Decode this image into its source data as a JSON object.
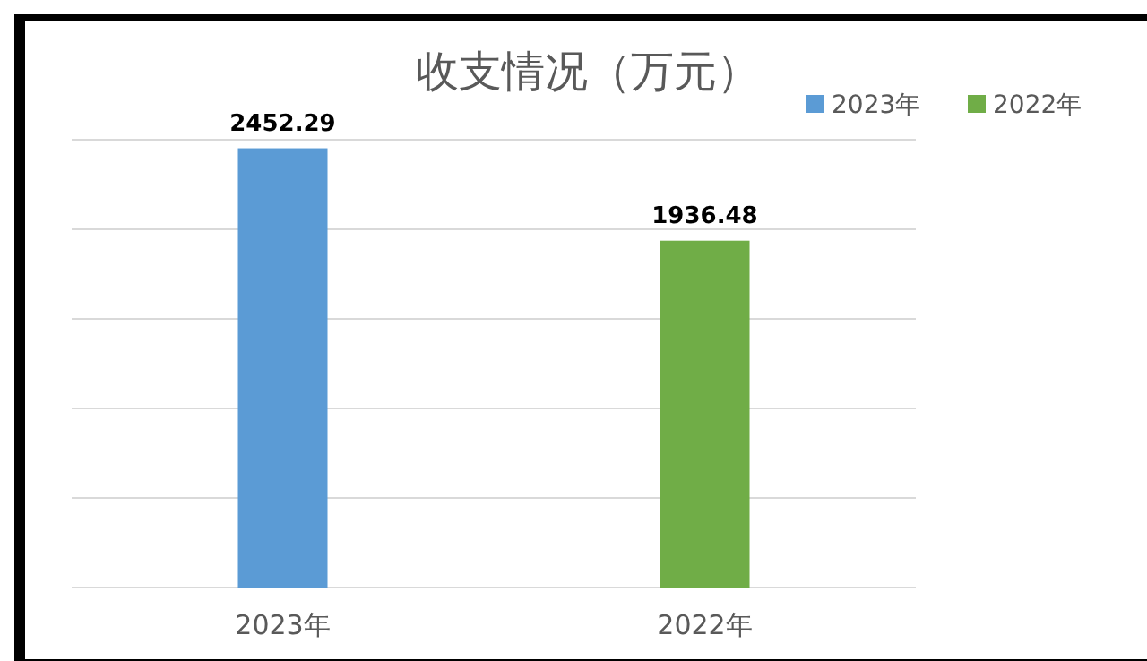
{
  "chart_data": {
    "type": "bar",
    "title": "收支情况（万元）",
    "categories": [
      "2023年",
      "2022年"
    ],
    "series": [
      {
        "name": "2023年",
        "color": "#5b9bd5",
        "values": [
          2452.29,
          null
        ]
      },
      {
        "name": "2022年",
        "color": "#70ad47",
        "values": [
          null,
          1936.48
        ]
      }
    ],
    "ylim": [
      0,
      2500
    ],
    "yticks": [
      {
        "value": 0,
        "label": null
      },
      {
        "value": 500,
        "label": null
      },
      {
        "value": 1000,
        "label": null
      },
      {
        "value": 1500,
        "label": null
      },
      {
        "value": 2000,
        "label": null
      },
      {
        "value": 2500,
        "label": null
      }
    ],
    "tick_labels": "x",
    "grid": "y",
    "data_labels": true,
    "legend": "top right"
  }
}
